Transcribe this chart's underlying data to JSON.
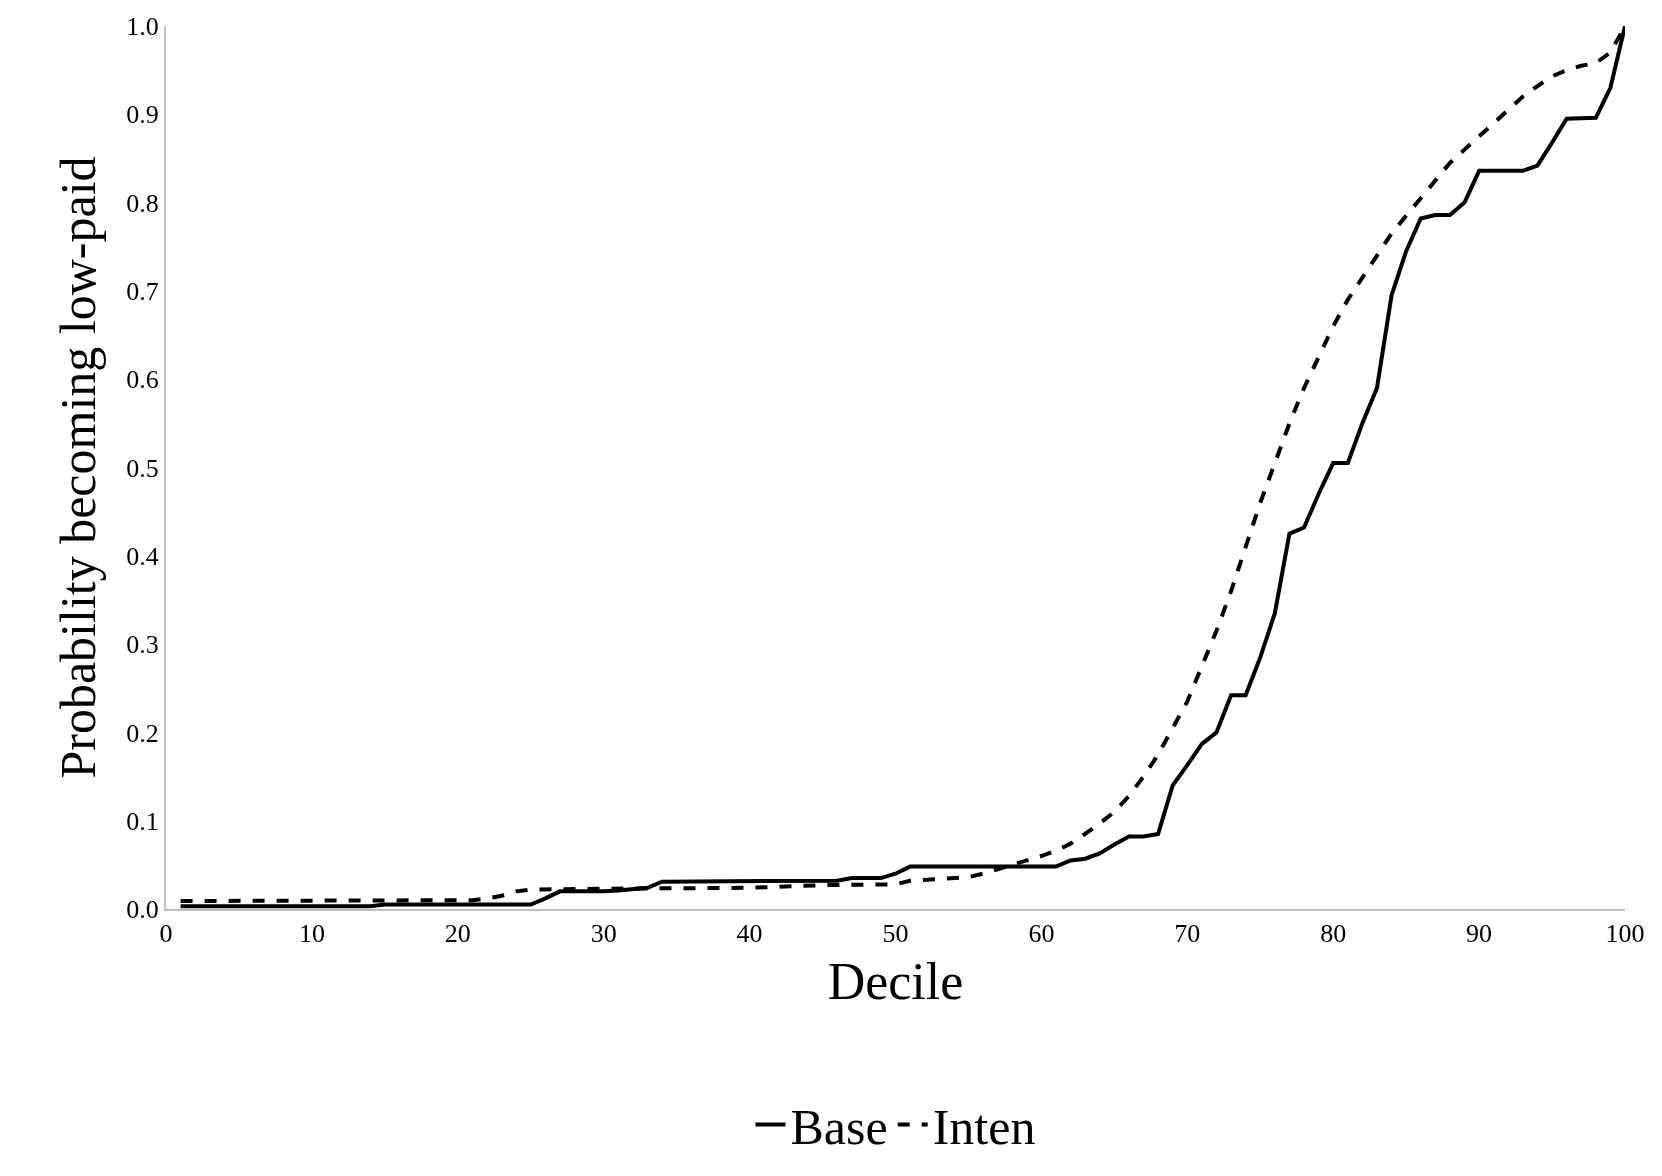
{
  "chart_data": {
    "type": "line",
    "xlabel": "Decile",
    "ylabel": "Probability becoming low-paid",
    "xlim": [
      0,
      100
    ],
    "xticks": [
      0,
      10,
      20,
      30,
      40,
      50,
      60,
      70,
      80,
      90,
      100
    ],
    "ylim": [
      0,
      1
    ],
    "yticks": [
      {
        "value": 0,
        "label": "0.0"
      },
      {
        "value": 0.1,
        "label": "0.1"
      },
      {
        "value": 0.2,
        "label": "0.2"
      },
      {
        "value": 0.3,
        "label": "0.3"
      },
      {
        "value": 0.4,
        "label": "0.4"
      },
      {
        "value": 0.5,
        "label": "0.5"
      },
      {
        "value": 0.6,
        "label": "0.6"
      },
      {
        "value": 0.7,
        "label": "0.7"
      },
      {
        "value": 0.8,
        "label": "0.8"
      },
      {
        "value": 0.9,
        "label": "0.9"
      },
      {
        "value": 1,
        "label": "1.0"
      }
    ],
    "grid": false,
    "legend": "bottom",
    "marker": "none",
    "series": [
      {
        "name": "Base",
        "color": "#000000",
        "line_style": "solid",
        "x": [
          1,
          14,
          15,
          25,
          26,
          27,
          30,
          31,
          33,
          34,
          46,
          47,
          49,
          50,
          51,
          61,
          62,
          63,
          64,
          65,
          66,
          67,
          68,
          69,
          70,
          71,
          72,
          73,
          74,
          75,
          76,
          77,
          78,
          79,
          80,
          81,
          82,
          83,
          84,
          85,
          86,
          87,
          88,
          89,
          90,
          93,
          94,
          95,
          96,
          98,
          99,
          100
        ],
        "values": [
          0.003,
          0.003,
          0.005,
          0.005,
          0.012,
          0.02,
          0.02,
          0.021,
          0.024,
          0.031,
          0.032,
          0.035,
          0.035,
          0.04,
          0.048,
          0.048,
          0.055,
          0.057,
          0.063,
          0.073,
          0.082,
          0.082,
          0.085,
          0.14,
          0.163,
          0.187,
          0.2,
          0.242,
          0.242,
          0.285,
          0.335,
          0.425,
          0.432,
          0.47,
          0.505,
          0.505,
          0.55,
          0.59,
          0.695,
          0.745,
          0.782,
          0.786,
          0.786,
          0.8,
          0.836,
          0.836,
          0.842,
          0.868,
          0.895,
          0.896,
          0.93,
          1.0
        ]
      },
      {
        "name": "Inten",
        "color": "#000000",
        "line_style": "dashed",
        "x": [
          1,
          21,
          22,
          23,
          24,
          25,
          30,
          40,
          45,
          50,
          51,
          55,
          56,
          57,
          58,
          59,
          60,
          61,
          62,
          63,
          64,
          65,
          66,
          67,
          68,
          69,
          70,
          71,
          72,
          73,
          74,
          75,
          76,
          77,
          78,
          79,
          80,
          81,
          82,
          83,
          84,
          85,
          86,
          87,
          88,
          89,
          90,
          91,
          92,
          93,
          94,
          95,
          96,
          97,
          98,
          99,
          100
        ],
        "values": [
          0.009,
          0.01,
          0.012,
          0.015,
          0.02,
          0.022,
          0.023,
          0.024,
          0.027,
          0.028,
          0.032,
          0.036,
          0.04,
          0.045,
          0.05,
          0.055,
          0.06,
          0.066,
          0.074,
          0.085,
          0.097,
          0.11,
          0.128,
          0.15,
          0.175,
          0.205,
          0.235,
          0.275,
          0.315,
          0.36,
          0.41,
          0.46,
          0.505,
          0.55,
          0.59,
          0.625,
          0.66,
          0.69,
          0.715,
          0.74,
          0.765,
          0.785,
          0.805,
          0.825,
          0.845,
          0.86,
          0.875,
          0.89,
          0.905,
          0.92,
          0.932,
          0.943,
          0.95,
          0.955,
          0.958,
          0.97,
          1.0
        ]
      }
    ]
  }
}
